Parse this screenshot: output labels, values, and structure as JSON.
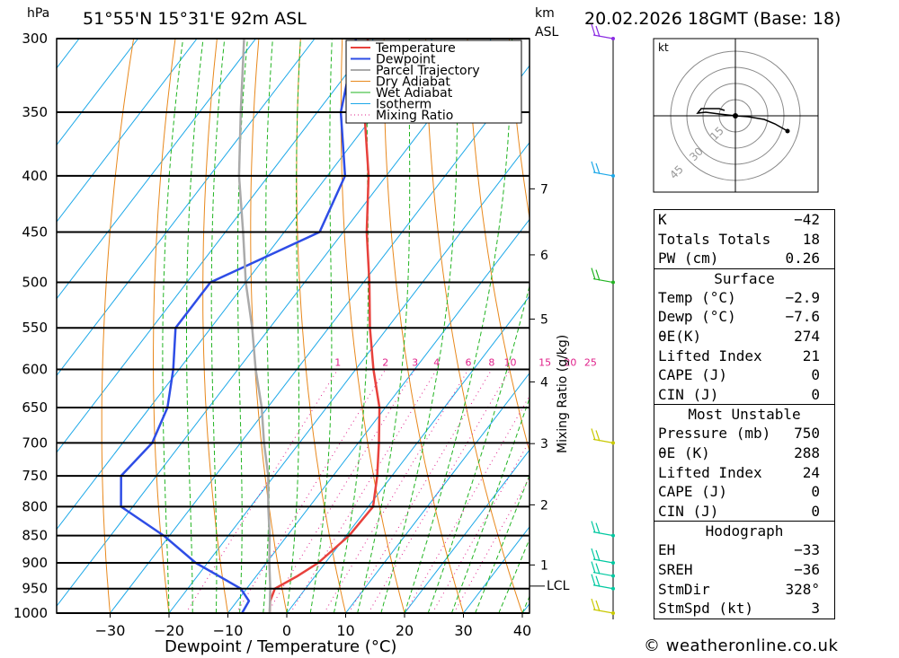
{
  "header": {
    "location": "51°55'N 15°31'E 92m ASL",
    "datetime": "20.02.2026 18GMT (Base: 18)",
    "pressure_unit": "hPa",
    "height_unit": "km",
    "height_unit2": "ASL"
  },
  "chart_data": {
    "type": "line",
    "title": "51°55'N 15°31'E 92m ASL",
    "subtitle": "20.02.2026 18GMT (Base: 18)",
    "xlabel": "Dewpoint / Temperature (°C)",
    "ylabel": "hPa",
    "right_label": "Mixing Ratio (g/kg)",
    "xlim": [
      -40,
      40
    ],
    "ylim": [
      1000,
      300
    ],
    "x_ticks": [
      -30,
      -20,
      -10,
      0,
      10,
      20,
      30,
      40
    ],
    "x_tick_labels": [
      "−30",
      "−20",
      "−10",
      "0",
      "10",
      "20",
      "30",
      "40"
    ],
    "pressure_levels": [
      300,
      350,
      400,
      450,
      500,
      550,
      600,
      650,
      700,
      750,
      800,
      850,
      900,
      950,
      1000
    ],
    "height_ticks": [
      {
        "km": "1",
        "p": 904
      },
      {
        "km": "2",
        "p": 797
      },
      {
        "km": "3",
        "p": 701
      },
      {
        "km": "4",
        "p": 616
      },
      {
        "km": "5",
        "p": 540
      },
      {
        "km": "6",
        "p": 472
      },
      {
        "km": "7",
        "p": 411
      }
    ],
    "lcl": {
      "label": "LCL",
      "p": 945
    },
    "mixing_ratio_labels": [
      "1",
      "2",
      "3",
      "4",
      "6",
      "8",
      "10",
      "15",
      "20",
      "25"
    ],
    "mixing_ratio_values": [
      1,
      2,
      3,
      4,
      6,
      8,
      10,
      15,
      20,
      25
    ],
    "legend": [
      "Temperature",
      "Dewpoint",
      "Parcel Trajectory",
      "Dry Adiabat",
      "Wet Adiabat",
      "Isotherm",
      "Mixing Ratio"
    ],
    "series": [
      {
        "name": "Temperature",
        "color": "#e8413c",
        "points": [
          [
            1000,
            -2.9
          ],
          [
            975,
            -4.4
          ],
          [
            950,
            -5.2
          ],
          [
            925,
            -3.0
          ],
          [
            900,
            -1.2
          ],
          [
            850,
            0.5
          ],
          [
            800,
            0.8
          ],
          [
            750,
            -2.5
          ],
          [
            700,
            -6.5
          ],
          [
            650,
            -11
          ],
          [
            600,
            -17
          ],
          [
            550,
            -23
          ],
          [
            500,
            -29
          ],
          [
            450,
            -36
          ],
          [
            400,
            -43
          ],
          [
            350,
            -52
          ],
          [
            300,
            -61
          ]
        ]
      },
      {
        "name": "Dewpoint",
        "color": "#2e4de6",
        "points": [
          [
            1000,
            -7.6
          ],
          [
            975,
            -8.0
          ],
          [
            950,
            -11
          ],
          [
            900,
            -22
          ],
          [
            850,
            -31
          ],
          [
            800,
            -42
          ],
          [
            750,
            -46
          ],
          [
            700,
            -45
          ],
          [
            650,
            -47
          ],
          [
            600,
            -51
          ],
          [
            550,
            -56
          ],
          [
            500,
            -56
          ],
          [
            450,
            -44
          ],
          [
            400,
            -47
          ],
          [
            350,
            -56
          ],
          [
            300,
            -63
          ]
        ]
      },
      {
        "name": "Parcel Trajectory",
        "color": "#aaaaaa",
        "points": [
          [
            1000,
            -2.9
          ],
          [
            950,
            -6.0
          ],
          [
            900,
            -9.5
          ],
          [
            850,
            -13
          ],
          [
            800,
            -17
          ],
          [
            750,
            -21
          ],
          [
            700,
            -26
          ],
          [
            650,
            -31
          ],
          [
            600,
            -37
          ],
          [
            550,
            -43
          ],
          [
            500,
            -50
          ],
          [
            450,
            -57
          ],
          [
            400,
            -65
          ],
          [
            350,
            -73
          ],
          [
            300,
            -82
          ]
        ]
      }
    ]
  },
  "hodograph": {
    "unit": "kt",
    "ring_labels": [
      "15",
      "30",
      "45"
    ]
  },
  "indices": {
    "general": [
      {
        "label": "K",
        "value": "−42"
      },
      {
        "label": "Totals Totals",
        "value": "18"
      },
      {
        "label": "PW (cm)",
        "value": "0.26"
      }
    ],
    "surface_title": "Surface",
    "surface": [
      {
        "label": "Temp (°C)",
        "value": "−2.9"
      },
      {
        "label": "Dewp (°C)",
        "value": "−7.6"
      },
      {
        "label": "θE(K)",
        "value": "274"
      },
      {
        "label": "Lifted Index",
        "value": "21"
      },
      {
        "label": "CAPE (J)",
        "value": "0"
      },
      {
        "label": "CIN (J)",
        "value": "0"
      }
    ],
    "mu_title": "Most Unstable",
    "mu": [
      {
        "label": "Pressure (mb)",
        "value": "750"
      },
      {
        "label": "θE (K)",
        "value": "288"
      },
      {
        "label": "Lifted Index",
        "value": "24"
      },
      {
        "label": "CAPE (J)",
        "value": "0"
      },
      {
        "label": "CIN (J)",
        "value": "0"
      }
    ],
    "hodo_title": "Hodograph",
    "hodo": [
      {
        "label": "EH",
        "value": "−33"
      },
      {
        "label": "SREH",
        "value": "−36"
      },
      {
        "label": "StmDir",
        "value": "328°"
      },
      {
        "label": "StmSpd (kt)",
        "value": "3"
      }
    ]
  },
  "credit": "© weatheronline.co.uk",
  "colors": {
    "temperature": "#e8413c",
    "dewpoint": "#2e4de6",
    "parcel": "#aaaaaa",
    "dry_adiabat": "#e8881c",
    "wet_adiabat": "#22b422",
    "isotherm": "#1ca8e8",
    "mixing_ratio": "#e0208a"
  }
}
